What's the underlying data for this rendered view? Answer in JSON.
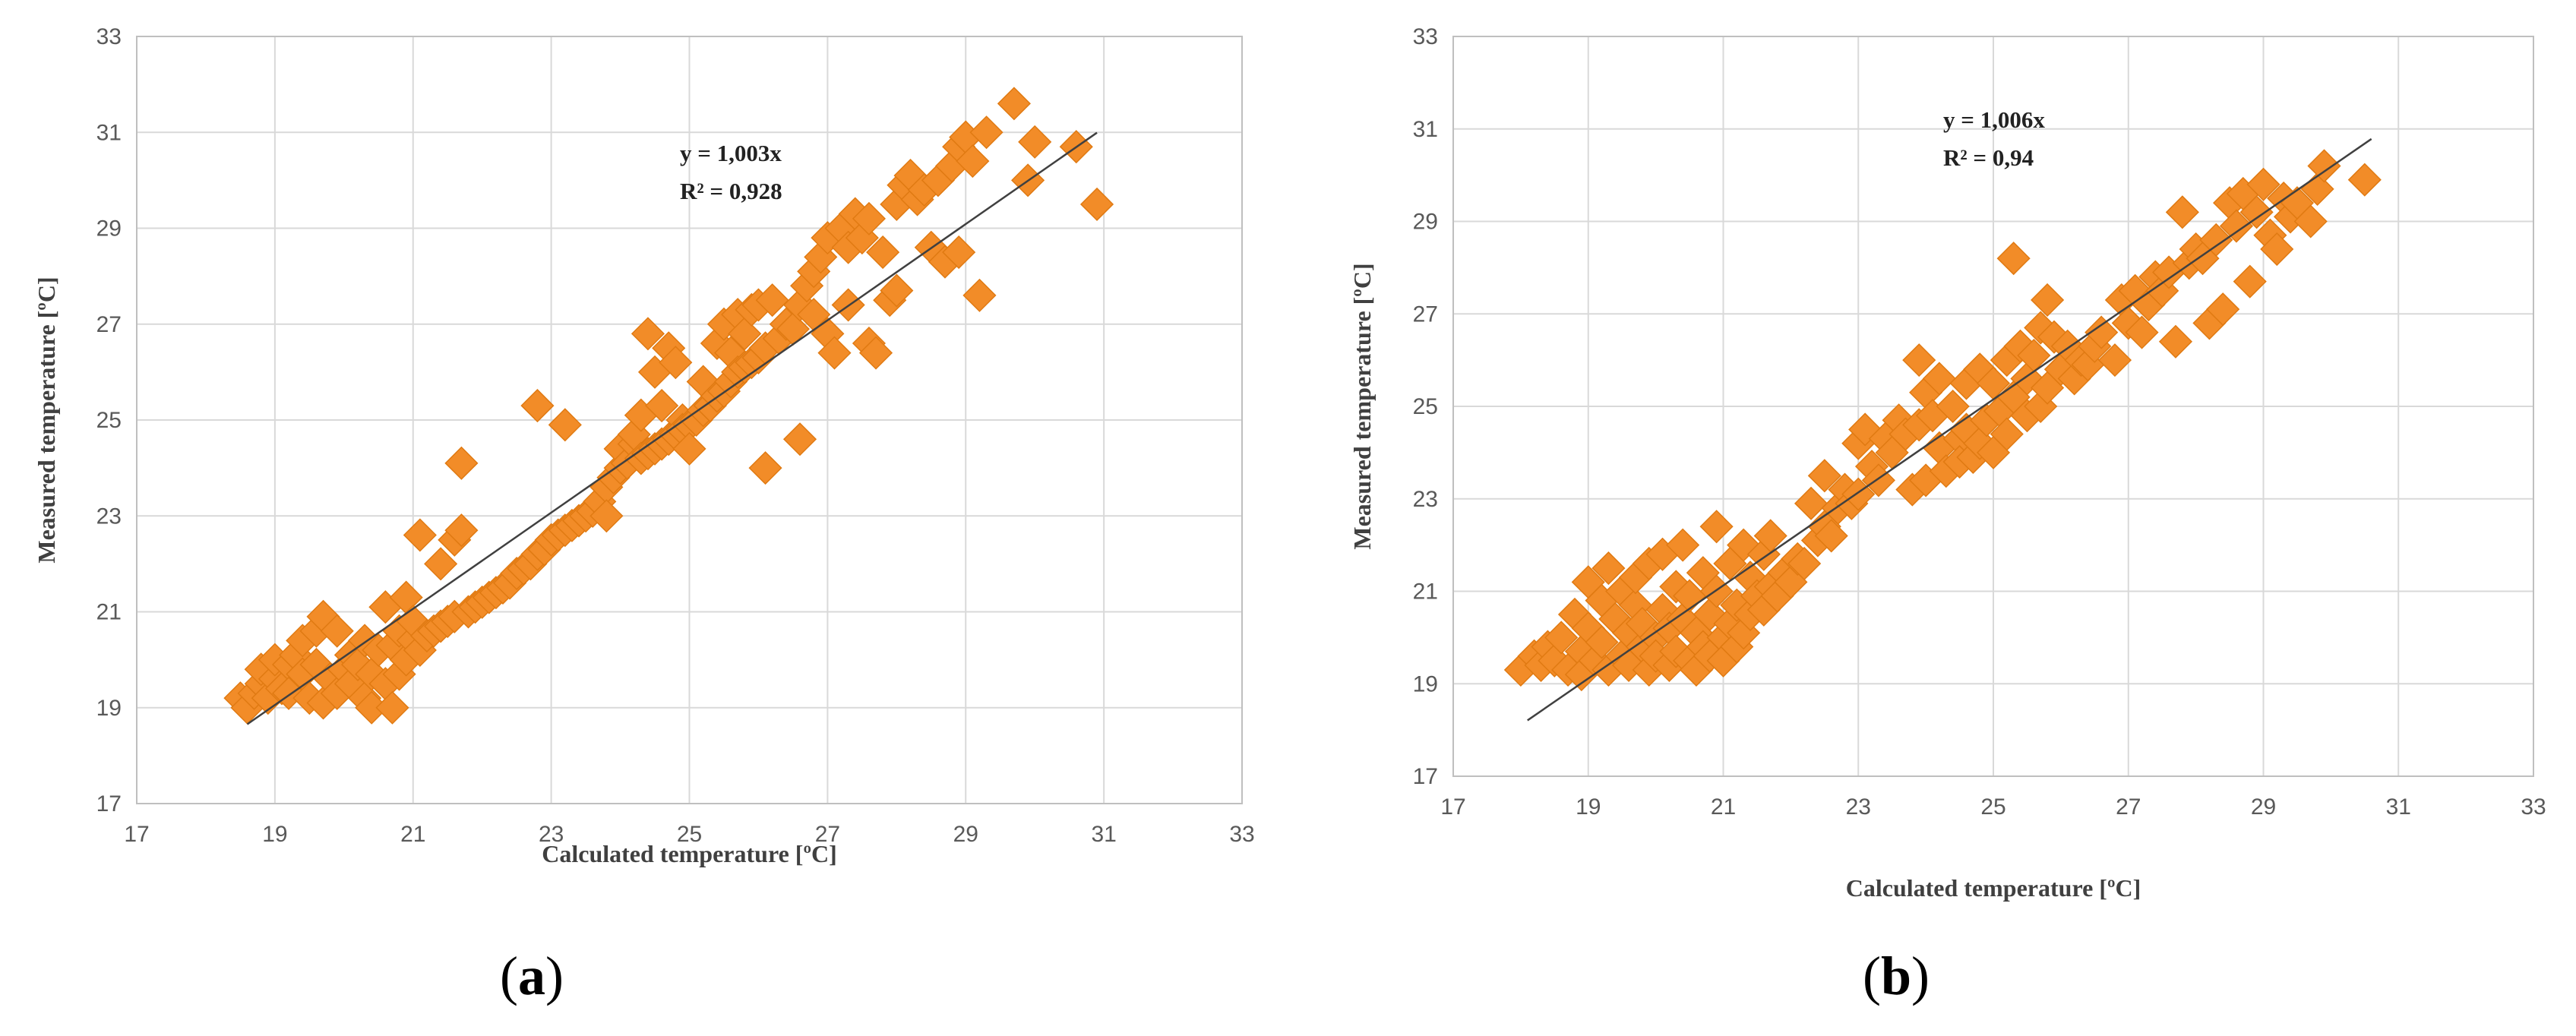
{
  "chart_data": [
    {
      "type": "scatter",
      "panel_label": "a",
      "xlabel": "Calculated temperature [ºC]",
      "ylabel": "Measured temperature [ºC]",
      "xlim": [
        17,
        33
      ],
      "ylim": [
        17,
        33
      ],
      "xticks": [
        17,
        19,
        21,
        23,
        25,
        27,
        29,
        31,
        33
      ],
      "yticks": [
        17,
        19,
        21,
        23,
        25,
        27,
        29,
        31,
        33
      ],
      "grid": true,
      "marker": "diamond",
      "marker_color": "#F28C28",
      "trendline": {
        "slope": 1.003,
        "x_range": [
          18.6,
          30.9
        ],
        "equation": "y = 1,003x",
        "r2": "R² = 0,928"
      },
      "points": [
        [
          18.5,
          19.2
        ],
        [
          18.6,
          19.0
        ],
        [
          18.7,
          19.3
        ],
        [
          18.8,
          19.5
        ],
        [
          18.8,
          19.8
        ],
        [
          18.9,
          19.2
        ],
        [
          19.0,
          19.6
        ],
        [
          19.0,
          20.0
        ],
        [
          19.1,
          19.4
        ],
        [
          19.2,
          19.9
        ],
        [
          19.2,
          19.3
        ],
        [
          19.3,
          20.1
        ],
        [
          19.4,
          19.7
        ],
        [
          19.4,
          20.4
        ],
        [
          19.5,
          19.2
        ],
        [
          19.6,
          20.6
        ],
        [
          19.6,
          19.9
        ],
        [
          19.7,
          20.9
        ],
        [
          19.7,
          19.1
        ],
        [
          19.8,
          19.6
        ],
        [
          19.9,
          20.6
        ],
        [
          19.9,
          19.3
        ],
        [
          20.0,
          19.8
        ],
        [
          20.1,
          20.1
        ],
        [
          20.1,
          19.5
        ],
        [
          20.2,
          19.9
        ],
        [
          20.3,
          19.2
        ],
        [
          20.3,
          20.4
        ],
        [
          20.4,
          19.7
        ],
        [
          20.4,
          19.0
        ],
        [
          20.5,
          20.2
        ],
        [
          20.6,
          19.5
        ],
        [
          20.6,
          21.1
        ],
        [
          20.7,
          19.0
        ],
        [
          20.7,
          20.3
        ],
        [
          20.8,
          19.7
        ],
        [
          20.8,
          20.6
        ],
        [
          20.9,
          20.0
        ],
        [
          20.9,
          21.3
        ],
        [
          21.0,
          20.4
        ],
        [
          21.0,
          20.8
        ],
        [
          21.1,
          22.6
        ],
        [
          21.1,
          20.2
        ],
        [
          21.2,
          20.5
        ],
        [
          21.3,
          20.6
        ],
        [
          21.4,
          20.7
        ],
        [
          21.4,
          22.0
        ],
        [
          21.5,
          20.8
        ],
        [
          21.6,
          22.5
        ],
        [
          21.6,
          20.9
        ],
        [
          21.7,
          24.1
        ],
        [
          21.7,
          22.7
        ],
        [
          21.8,
          21.0
        ],
        [
          21.9,
          21.1
        ],
        [
          22.0,
          21.2
        ],
        [
          22.1,
          21.3
        ],
        [
          22.2,
          21.4
        ],
        [
          22.3,
          21.5
        ],
        [
          22.4,
          21.6
        ],
        [
          22.5,
          21.8
        ],
        [
          22.6,
          21.9
        ],
        [
          22.7,
          22.0
        ],
        [
          22.8,
          25.3
        ],
        [
          22.8,
          22.2
        ],
        [
          22.9,
          22.3
        ],
        [
          23.0,
          22.5
        ],
        [
          23.1,
          22.6
        ],
        [
          23.2,
          24.9
        ],
        [
          23.2,
          22.7
        ],
        [
          23.3,
          22.8
        ],
        [
          23.4,
          22.9
        ],
        [
          23.5,
          23.0
        ],
        [
          23.6,
          23.1
        ],
        [
          23.7,
          23.3
        ],
        [
          23.8,
          23.6
        ],
        [
          23.8,
          23.0
        ],
        [
          23.9,
          23.8
        ],
        [
          24.0,
          24.0
        ],
        [
          24.0,
          24.4
        ],
        [
          24.1,
          24.1
        ],
        [
          24.2,
          24.5
        ],
        [
          24.2,
          24.7
        ],
        [
          24.3,
          25.1
        ],
        [
          24.3,
          24.2
        ],
        [
          24.4,
          26.8
        ],
        [
          24.4,
          24.3
        ],
        [
          24.5,
          26.0
        ],
        [
          24.5,
          24.4
        ],
        [
          24.6,
          25.3
        ],
        [
          24.6,
          24.5
        ],
        [
          24.7,
          26.5
        ],
        [
          24.7,
          24.6
        ],
        [
          24.8,
          26.2
        ],
        [
          24.8,
          24.7
        ],
        [
          24.9,
          25.0
        ],
        [
          24.9,
          24.8
        ],
        [
          25.0,
          24.9
        ],
        [
          25.0,
          24.4
        ],
        [
          25.1,
          25.0
        ],
        [
          25.2,
          25.2
        ],
        [
          25.2,
          25.8
        ],
        [
          25.3,
          25.3
        ],
        [
          25.4,
          26.6
        ],
        [
          25.4,
          25.5
        ],
        [
          25.5,
          27.0
        ],
        [
          25.5,
          25.6
        ],
        [
          25.6,
          26.4
        ],
        [
          25.6,
          25.8
        ],
        [
          25.7,
          27.2
        ],
        [
          25.7,
          26.0
        ],
        [
          25.8,
          26.8
        ],
        [
          25.8,
          26.1
        ],
        [
          25.9,
          27.3
        ],
        [
          25.9,
          26.2
        ],
        [
          26.0,
          27.4
        ],
        [
          26.0,
          26.3
        ],
        [
          26.1,
          24.0
        ],
        [
          26.1,
          26.5
        ],
        [
          26.2,
          27.5
        ],
        [
          26.3,
          26.7
        ],
        [
          26.4,
          27.0
        ],
        [
          26.5,
          26.9
        ],
        [
          26.6,
          27.4
        ],
        [
          26.6,
          24.6
        ],
        [
          26.7,
          27.8
        ],
        [
          26.8,
          28.1
        ],
        [
          26.8,
          27.2
        ],
        [
          26.9,
          28.4
        ],
        [
          27.0,
          26.8
        ],
        [
          27.0,
          28.8
        ],
        [
          27.1,
          26.4
        ],
        [
          27.2,
          29.0
        ],
        [
          27.3,
          27.4
        ],
        [
          27.3,
          28.6
        ],
        [
          27.4,
          29.3
        ],
        [
          27.5,
          28.8
        ],
        [
          27.6,
          26.6
        ],
        [
          27.6,
          29.2
        ],
        [
          27.7,
          26.4
        ],
        [
          27.8,
          28.5
        ],
        [
          27.9,
          27.5
        ],
        [
          28.0,
          27.7
        ],
        [
          28.0,
          29.5
        ],
        [
          28.1,
          29.9
        ],
        [
          28.2,
          30.1
        ],
        [
          28.3,
          29.6
        ],
        [
          28.4,
          29.8
        ],
        [
          28.5,
          28.6
        ],
        [
          28.6,
          30.0
        ],
        [
          28.7,
          28.3
        ],
        [
          28.8,
          30.3
        ],
        [
          28.9,
          28.5
        ],
        [
          28.9,
          30.7
        ],
        [
          29.0,
          30.9
        ],
        [
          29.1,
          30.4
        ],
        [
          29.2,
          27.6
        ],
        [
          29.3,
          31.0
        ],
        [
          29.7,
          31.6
        ],
        [
          29.9,
          30.0
        ],
        [
          30.0,
          30.8
        ],
        [
          30.6,
          30.7
        ],
        [
          30.9,
          29.5
        ]
      ]
    },
    {
      "type": "scatter",
      "panel_label": "b",
      "xlabel": "Calculated temperature [ºC]",
      "ylabel": "Measured temperature [ºC]",
      "xlim": [
        17,
        33
      ],
      "ylim": [
        17,
        33
      ],
      "xticks": [
        17,
        19,
        21,
        23,
        25,
        27,
        29,
        31,
        33
      ],
      "yticks": [
        17,
        19,
        21,
        23,
        25,
        27,
        29,
        31,
        33
      ],
      "grid": true,
      "marker": "diamond",
      "marker_color": "#F28C28",
      "trendline": {
        "slope": 1.006,
        "x_range": [
          18.1,
          30.6
        ],
        "equation": "y = 1,006x",
        "r2": "R² = 0,94"
      },
      "points": [
        [
          18.0,
          19.3
        ],
        [
          18.2,
          19.6
        ],
        [
          18.3,
          19.4
        ],
        [
          18.4,
          19.8
        ],
        [
          18.5,
          19.5
        ],
        [
          18.6,
          20.0
        ],
        [
          18.7,
          19.3
        ],
        [
          18.8,
          20.5
        ],
        [
          18.9,
          19.7
        ],
        [
          18.9,
          19.2
        ],
        [
          19.0,
          20.2
        ],
        [
          19.0,
          21.2
        ],
        [
          19.1,
          19.5
        ],
        [
          19.2,
          20.8
        ],
        [
          19.2,
          19.9
        ],
        [
          19.3,
          21.5
        ],
        [
          19.3,
          19.3
        ],
        [
          19.4,
          20.4
        ],
        [
          19.5,
          19.6
        ],
        [
          19.5,
          21.0
        ],
        [
          19.6,
          20.1
        ],
        [
          19.6,
          19.4
        ],
        [
          19.7,
          20.7
        ],
        [
          19.7,
          21.3
        ],
        [
          19.8,
          19.8
        ],
        [
          19.8,
          20.3
        ],
        [
          19.9,
          19.3
        ],
        [
          19.9,
          21.6
        ],
        [
          20.0,
          20.0
        ],
        [
          20.0,
          19.6
        ],
        [
          20.1,
          20.6
        ],
        [
          20.1,
          21.8
        ],
        [
          20.2,
          19.4
        ],
        [
          20.2,
          20.2
        ],
        [
          20.3,
          19.7
        ],
        [
          20.3,
          21.1
        ],
        [
          20.4,
          20.4
        ],
        [
          20.4,
          22.0
        ],
        [
          20.5,
          19.5
        ],
        [
          20.5,
          20.9
        ],
        [
          20.6,
          19.3
        ],
        [
          20.6,
          20.1
        ],
        [
          20.7,
          21.4
        ],
        [
          20.7,
          19.8
        ],
        [
          20.8,
          20.5
        ],
        [
          20.8,
          19.6
        ],
        [
          20.9,
          22.4
        ],
        [
          20.9,
          21.0
        ],
        [
          21.0,
          20.0
        ],
        [
          21.0,
          19.5
        ],
        [
          21.1,
          21.6
        ],
        [
          21.1,
          20.3
        ],
        [
          21.2,
          19.8
        ],
        [
          21.2,
          20.7
        ],
        [
          21.3,
          20.1
        ],
        [
          21.3,
          22.0
        ],
        [
          21.4,
          21.3
        ],
        [
          21.4,
          20.5
        ],
        [
          21.5,
          20.9
        ],
        [
          21.6,
          21.8
        ],
        [
          21.6,
          20.6
        ],
        [
          21.7,
          22.2
        ],
        [
          21.7,
          21.1
        ],
        [
          21.8,
          20.9
        ],
        [
          21.9,
          21.4
        ],
        [
          22.0,
          21.2
        ],
        [
          22.1,
          21.7
        ],
        [
          22.2,
          21.6
        ],
        [
          22.3,
          22.9
        ],
        [
          22.4,
          22.1
        ],
        [
          22.5,
          23.5
        ],
        [
          22.5,
          22.4
        ],
        [
          22.6,
          22.2
        ],
        [
          22.7,
          22.8
        ],
        [
          22.8,
          23.2
        ],
        [
          22.9,
          22.9
        ],
        [
          23.0,
          24.2
        ],
        [
          23.0,
          23.1
        ],
        [
          23.1,
          24.5
        ],
        [
          23.2,
          23.7
        ],
        [
          23.3,
          23.4
        ],
        [
          23.4,
          24.3
        ],
        [
          23.5,
          24.0
        ],
        [
          23.6,
          24.7
        ],
        [
          23.7,
          24.4
        ],
        [
          23.8,
          23.2
        ],
        [
          23.9,
          26.0
        ],
        [
          23.9,
          24.6
        ],
        [
          24.0,
          25.3
        ],
        [
          24.0,
          23.4
        ],
        [
          24.1,
          24.8
        ],
        [
          24.2,
          24.1
        ],
        [
          24.2,
          25.6
        ],
        [
          24.3,
          23.6
        ],
        [
          24.4,
          25.0
        ],
        [
          24.5,
          24.3
        ],
        [
          24.5,
          23.8
        ],
        [
          24.6,
          25.5
        ],
        [
          24.6,
          24.5
        ],
        [
          24.7,
          23.9
        ],
        [
          24.8,
          25.8
        ],
        [
          24.8,
          24.2
        ],
        [
          24.9,
          24.7
        ],
        [
          25.0,
          24.0
        ],
        [
          25.0,
          25.5
        ],
        [
          25.1,
          24.9
        ],
        [
          25.2,
          26.0
        ],
        [
          25.2,
          24.4
        ],
        [
          25.3,
          28.2
        ],
        [
          25.3,
          25.2
        ],
        [
          25.4,
          26.3
        ],
        [
          25.5,
          24.8
        ],
        [
          25.5,
          25.6
        ],
        [
          25.6,
          26.1
        ],
        [
          25.7,
          25.0
        ],
        [
          25.7,
          26.7
        ],
        [
          25.8,
          27.3
        ],
        [
          25.8,
          25.4
        ],
        [
          25.9,
          26.5
        ],
        [
          26.0,
          25.8
        ],
        [
          26.1,
          26.3
        ],
        [
          26.2,
          25.6
        ],
        [
          26.3,
          26.0
        ],
        [
          26.4,
          25.9
        ],
        [
          26.5,
          26.3
        ],
        [
          26.6,
          26.6
        ],
        [
          26.8,
          26.0
        ],
        [
          26.9,
          27.3
        ],
        [
          27.0,
          26.8
        ],
        [
          27.1,
          27.5
        ],
        [
          27.2,
          26.6
        ],
        [
          27.3,
          27.2
        ],
        [
          27.4,
          27.8
        ],
        [
          27.5,
          27.5
        ],
        [
          27.6,
          27.9
        ],
        [
          27.7,
          26.4
        ],
        [
          27.8,
          29.2
        ],
        [
          27.9,
          28.1
        ],
        [
          28.0,
          28.4
        ],
        [
          28.1,
          28.2
        ],
        [
          28.2,
          26.8
        ],
        [
          28.3,
          28.6
        ],
        [
          28.4,
          27.1
        ],
        [
          28.5,
          29.4
        ],
        [
          28.6,
          28.9
        ],
        [
          28.7,
          29.6
        ],
        [
          28.8,
          27.7
        ],
        [
          28.9,
          29.2
        ],
        [
          29.0,
          29.8
        ],
        [
          29.1,
          28.7
        ],
        [
          29.2,
          28.4
        ],
        [
          29.3,
          29.5
        ],
        [
          29.4,
          29.1
        ],
        [
          29.5,
          29.4
        ],
        [
          29.7,
          29.0
        ],
        [
          29.8,
          29.7
        ],
        [
          29.9,
          30.2
        ],
        [
          30.5,
          29.9
        ]
      ]
    }
  ]
}
